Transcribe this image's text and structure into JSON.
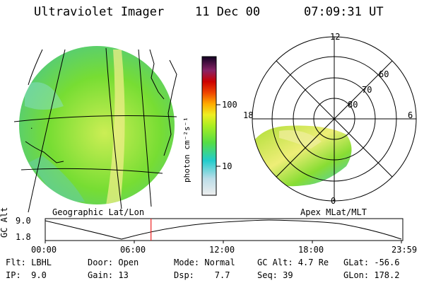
{
  "header": {
    "instrument": "Ultraviolet Imager",
    "date": "11 Dec 00",
    "time": "07:09:31 UT"
  },
  "colorbar": {
    "unit_label": "photon cm⁻²s⁻¹",
    "ticks": [
      "100",
      "10"
    ]
  },
  "polar_plot": {
    "mlt_labels": {
      "top": "12",
      "left": "18",
      "right": "6",
      "bottom": "0"
    },
    "lat_labels": [
      "60",
      "70",
      "80"
    ],
    "caption": "Apex MLat/MLT"
  },
  "geo_plot": {
    "caption": "Geographic Lat/Lon"
  },
  "altitude_plot": {
    "ylabel": "GC Alt",
    "yticks": [
      "9.0",
      "1.8"
    ],
    "xticks": [
      "00:00",
      "06:00",
      "12:00",
      "18:00",
      "23:59"
    ],
    "current_time_fraction": 0.297
  },
  "footer": {
    "flt": "Flt: LBHL",
    "ip": "IP:  9.0",
    "door": "Door: Open",
    "gain": "Gain: 13",
    "mode": "Mode: Normal",
    "dsp": "Dsp:    7.7",
    "gcalt": "GC Alt: 4.7 Re",
    "seq": "Seq: 39",
    "glat": "GLat: -56.6",
    "glon": "GLon: 178.2"
  },
  "colors": {
    "aurora_green": "#66dd22",
    "aurora_yellow": "#eeee66",
    "aurora_cyan": "#22ccdd",
    "time_marker": "#ee2222"
  }
}
